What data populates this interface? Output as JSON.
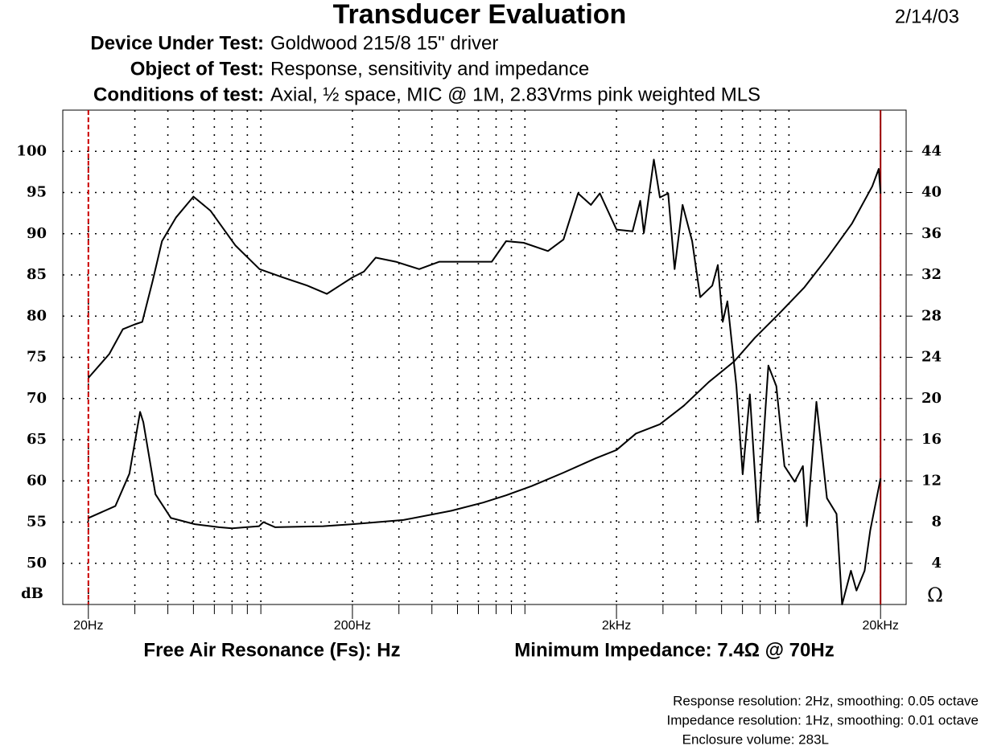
{
  "chart_data": {
    "type": "line",
    "title": "Transducer Evaluation",
    "date": "2/14/03",
    "header": [
      {
        "label": "Device Under Test:",
        "value": "Goldwood 215/8 15\" driver"
      },
      {
        "label": "Object of Test:",
        "value": "Response, sensitivity and impedance"
      },
      {
        "label": "Conditions of test:",
        "value": "Axial, ½ space, MIC @ 1M, 2.83Vrms pink weighted MLS"
      }
    ],
    "x_scale": "log",
    "xlim": [
      16,
      25000
    ],
    "xticks": [
      {
        "value": 20,
        "label": "20Hz"
      },
      {
        "value": 200,
        "label": "200Hz"
      },
      {
        "value": 2000,
        "label": "2kHz"
      },
      {
        "value": 20000,
        "label": "20kHz"
      }
    ],
    "x_minor_ticks": [
      30,
      40,
      50,
      60,
      70,
      80,
      90,
      300,
      400,
      500,
      600,
      700,
      800,
      900,
      3000,
      4000,
      5000,
      6000,
      7000,
      8000,
      9000
    ],
    "ylim": [
      45,
      105
    ],
    "yticks": [
      50,
      55,
      60,
      65,
      70,
      75,
      80,
      85,
      90,
      95,
      100
    ],
    "y_label": "dB",
    "y2lim": [
      0,
      48
    ],
    "y2ticks": [
      4,
      8,
      12,
      16,
      20,
      24,
      28,
      32,
      36,
      40,
      44
    ],
    "y2_label": "Ω",
    "grid": true,
    "markers": [
      {
        "x": 20,
        "color": "#cc0000",
        "style": "dashed"
      },
      {
        "x": 20000,
        "color": "#990000",
        "style": "solid"
      }
    ],
    "series": [
      {
        "color": "#000000",
        "x": [
          20,
          24,
          27,
          30,
          32,
          35,
          38,
          43,
          50,
          58,
          72,
          89,
          109,
          135,
          160,
          179,
          200,
          221,
          245,
          292,
          358,
          427,
          546,
          674,
          764,
          890,
          1100,
          1260,
          1430,
          1600,
          1730,
          2000,
          2300,
          2460,
          2540,
          2770,
          2920,
          3140,
          3320,
          3560,
          3870,
          4150,
          4610,
          4840,
          5050,
          5260,
          5690,
          6010,
          6400,
          6870,
          7520,
          8060,
          8650,
          9460,
          10160,
          10520,
          11430,
          12530,
          13620,
          14300,
          15450,
          16220,
          17400,
          18280,
          20000
        ],
        "values": [
          72.5,
          75.4,
          78.4,
          79,
          79.3,
          84.2,
          89.1,
          92,
          94.5,
          92.8,
          88.6,
          85.7,
          84.7,
          83.7,
          82.7,
          83.7,
          84.7,
          85.4,
          87.1,
          86.6,
          85.7,
          86.6,
          86.6,
          86.6,
          89.1,
          88.9,
          87.9,
          89.3,
          94.9,
          93.5,
          94.9,
          90.5,
          90.3,
          94,
          90.1,
          99,
          94.4,
          94.9,
          85.7,
          93.5,
          89.1,
          82.3,
          83.7,
          86.2,
          79.3,
          81.8,
          71.5,
          60.8,
          70.5,
          55,
          74,
          71.5,
          61.8,
          59.9,
          61.8,
          54.5,
          69.6,
          57.9,
          56,
          45,
          49.1,
          46.7,
          49.1,
          54,
          60.3
        ]
      },
      {
        "color": "#000000",
        "axis": "y2",
        "x": [
          20,
          25.3,
          28.6,
          31.4,
          32.3,
          35.9,
          41.1,
          50.6,
          62.5,
          70,
          88.6,
          92,
          102,
          155,
          200,
          312,
          474,
          626,
          764,
          954,
          1260,
          1670,
          2000,
          2370,
          2920,
          3600,
          4470,
          5580,
          6690,
          8300,
          10300,
          12600,
          15600,
          18600,
          19700,
          20000
        ],
        "values": [
          8.4,
          9.55,
          12.7,
          18.7,
          17.7,
          10.7,
          8.4,
          7.8,
          7.5,
          7.4,
          7.6,
          8,
          7.5,
          7.6,
          7.8,
          8.2,
          9.1,
          9.9,
          10.6,
          11.5,
          12.8,
          14.2,
          15,
          16.6,
          17.5,
          19.3,
          21.6,
          23.6,
          25.9,
          28.3,
          30.8,
          33.7,
          37,
          40.6,
          42.3,
          39.9
        ]
      }
    ],
    "footer": [
      "Free Air Resonance (Fs): Hz",
      "Minimum Impedance: 7.4Ω @ 70Hz"
    ],
    "notes": [
      "Response resolution: 2Hz, smoothing: 0.05 octave",
      "Impedance resolution: 1Hz, smoothing: 0.01 octave",
      "Enclosure volume: 283L"
    ]
  }
}
